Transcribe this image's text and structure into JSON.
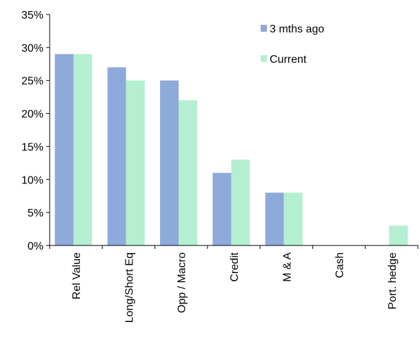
{
  "chart_data": {
    "type": "bar",
    "title": "",
    "xlabel": "",
    "ylabel": "",
    "categories": [
      "Rel Value",
      "Long/Short Eq",
      "Opp / Macro",
      "Credit",
      "M & A",
      "Cash",
      "Port. hedge"
    ],
    "series": [
      {
        "name": "3 mths ago",
        "values": [
          29,
          27,
          25,
          11,
          8,
          0,
          0
        ]
      },
      {
        "name": "Current",
        "values": [
          29,
          25,
          22,
          13,
          8,
          0,
          3
        ]
      }
    ],
    "ylim": [
      0,
      35
    ],
    "y_ticks": [
      "0%",
      "5%",
      "10%",
      "15%",
      "20%",
      "25%",
      "30%",
      "35%"
    ],
    "y_tick_values": [
      0,
      5,
      10,
      15,
      20,
      25,
      30,
      35
    ],
    "colors": {
      "3 mths ago": "#8eaadb",
      "Current": "#b3efd0"
    },
    "grid": false,
    "legend_position": "top-right"
  }
}
